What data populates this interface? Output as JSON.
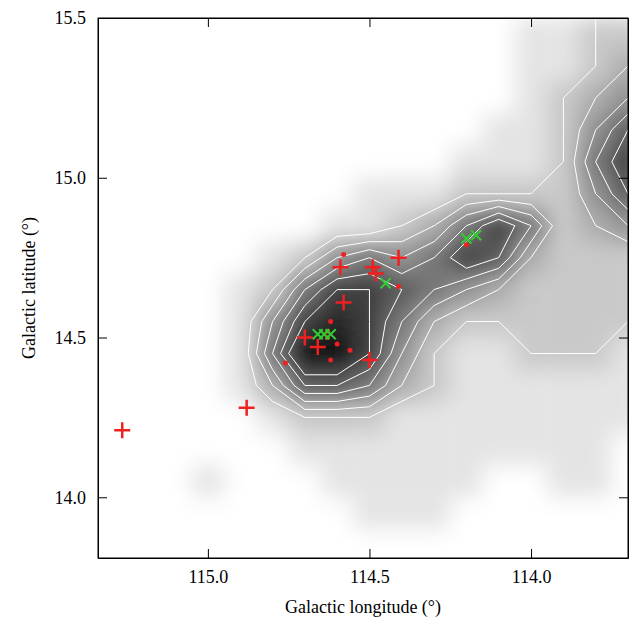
{
  "chart_data": {
    "type": "scatter",
    "x_label": "Galactic longitude (°)",
    "y_label": "Galactic latitude (°)",
    "xlim": [
      115.34,
      113.7
    ],
    "ylim": [
      13.81,
      15.5
    ],
    "xticks": [
      {
        "value": 115.0,
        "label": "115.0"
      },
      {
        "value": 114.5,
        "label": "114.5"
      },
      {
        "value": 114.0,
        "label": "114.0"
      }
    ],
    "yticks": [
      15.5,
      {
        "value": 15.0,
        "label": "15.0"
      },
      {
        "value": 14.5,
        "label": "14.5"
      },
      {
        "value": 14.0,
        "label": "14.0"
      }
    ],
    "cells": {
      "x": [
        115.3,
        115.2,
        115.1,
        115.0,
        114.9,
        114.8,
        114.7,
        114.6,
        114.5,
        114.4,
        114.3,
        114.2,
        114.1,
        114.0,
        113.9,
        113.8,
        113.7
      ],
      "y": [
        15.45,
        15.35,
        15.25,
        15.15,
        15.05,
        14.95,
        14.85,
        14.75,
        14.65,
        14.55,
        14.45,
        14.35,
        14.25,
        14.15,
        14.05,
        13.95,
        13.85
      ],
      "values": [
        [
          0,
          0,
          0,
          0,
          0,
          0,
          0,
          0,
          0,
          0,
          0,
          0,
          0,
          1,
          1,
          2,
          2
        ],
        [
          0,
          0,
          0,
          0,
          0,
          0,
          0,
          0,
          0,
          0,
          0,
          0,
          0,
          1,
          1,
          2,
          3
        ],
        [
          0,
          0,
          0,
          0,
          0,
          0,
          0,
          0,
          0,
          0,
          0,
          0,
          0,
          1,
          2,
          3,
          4
        ],
        [
          0,
          0,
          0,
          0,
          0,
          0,
          0,
          0,
          0,
          0,
          0,
          0,
          1,
          1,
          2,
          4,
          6
        ],
        [
          0,
          0,
          0,
          0,
          0,
          0,
          0,
          0,
          0,
          0,
          0,
          1,
          1,
          1,
          2,
          5,
          7
        ],
        [
          0,
          0,
          0,
          0,
          0,
          0,
          0,
          0,
          1,
          1,
          1,
          2,
          2,
          2,
          2,
          4,
          6
        ],
        [
          0,
          0,
          0,
          0,
          0,
          0,
          0,
          1,
          1,
          2,
          3,
          5,
          7,
          5,
          2,
          3,
          4
        ],
        [
          0,
          0,
          0,
          0,
          0,
          1,
          2,
          4,
          5,
          4,
          5,
          7,
          6,
          3,
          2,
          2,
          2
        ],
        [
          0,
          0,
          0,
          0,
          1,
          2,
          5,
          7,
          7,
          6,
          5,
          4,
          3,
          2,
          2,
          2,
          2
        ],
        [
          0,
          0,
          0,
          0,
          1,
          4,
          7,
          8,
          7,
          5,
          3,
          2,
          2,
          2,
          2,
          2,
          2
        ],
        [
          0,
          0,
          0,
          0,
          1,
          5,
          9,
          9,
          7,
          4,
          2,
          1,
          1,
          2,
          2,
          2,
          1
        ],
        [
          0,
          0,
          0,
          0,
          1,
          3,
          6,
          6,
          5,
          3,
          2,
          1,
          1,
          1,
          1,
          1,
          1
        ],
        [
          0,
          0,
          0,
          0,
          0,
          1,
          2,
          2,
          2,
          1,
          1,
          1,
          1,
          1,
          1,
          1,
          1
        ],
        [
          0,
          0,
          0,
          0,
          0,
          0,
          1,
          1,
          1,
          1,
          1,
          1,
          1,
          1,
          1,
          1,
          0
        ],
        [
          0,
          0,
          0,
          1,
          0,
          0,
          0,
          1,
          1,
          1,
          1,
          1,
          0,
          0,
          1,
          1,
          0
        ],
        [
          0,
          0,
          0,
          0,
          0,
          0,
          0,
          0,
          1,
          1,
          1,
          0,
          0,
          0,
          0,
          0,
          0
        ],
        [
          0,
          0,
          0,
          0,
          0,
          0,
          0,
          0,
          0,
          0,
          0,
          0,
          0,
          0,
          0,
          0,
          0
        ]
      ]
    },
    "contour_levels": [
      2,
      3,
      4,
      5,
      6,
      7
    ],
    "series": [
      {
        "type": "scatter",
        "marker": "plus",
        "color": "#ee2020",
        "x": [
          115.265,
          114.88,
          114.7,
          114.66,
          114.5,
          114.58,
          114.59,
          114.49,
          114.48,
          114.41
        ],
        "values": [
          14.21,
          14.28,
          14.5,
          14.47,
          14.43,
          14.61,
          14.72,
          14.72,
          14.7,
          14.75
        ]
      },
      {
        "type": "scatter",
        "marker": "dot",
        "color": "#ee2020",
        "x": [
          114.76,
          114.62,
          114.63,
          114.63,
          114.6,
          114.56,
          114.62,
          114.41,
          114.58,
          114.2
        ],
        "values": [
          14.42,
          14.55,
          14.52,
          14.5,
          14.48,
          14.46,
          14.43,
          14.66,
          14.76,
          14.79
        ]
      },
      {
        "type": "scatter",
        "marker": "x",
        "color": "#33cc33",
        "x": [
          114.66,
          114.64,
          114.62,
          114.45,
          114.2,
          114.17
        ],
        "values": [
          14.51,
          14.51,
          14.51,
          14.67,
          14.81,
          14.82
        ]
      }
    ]
  }
}
